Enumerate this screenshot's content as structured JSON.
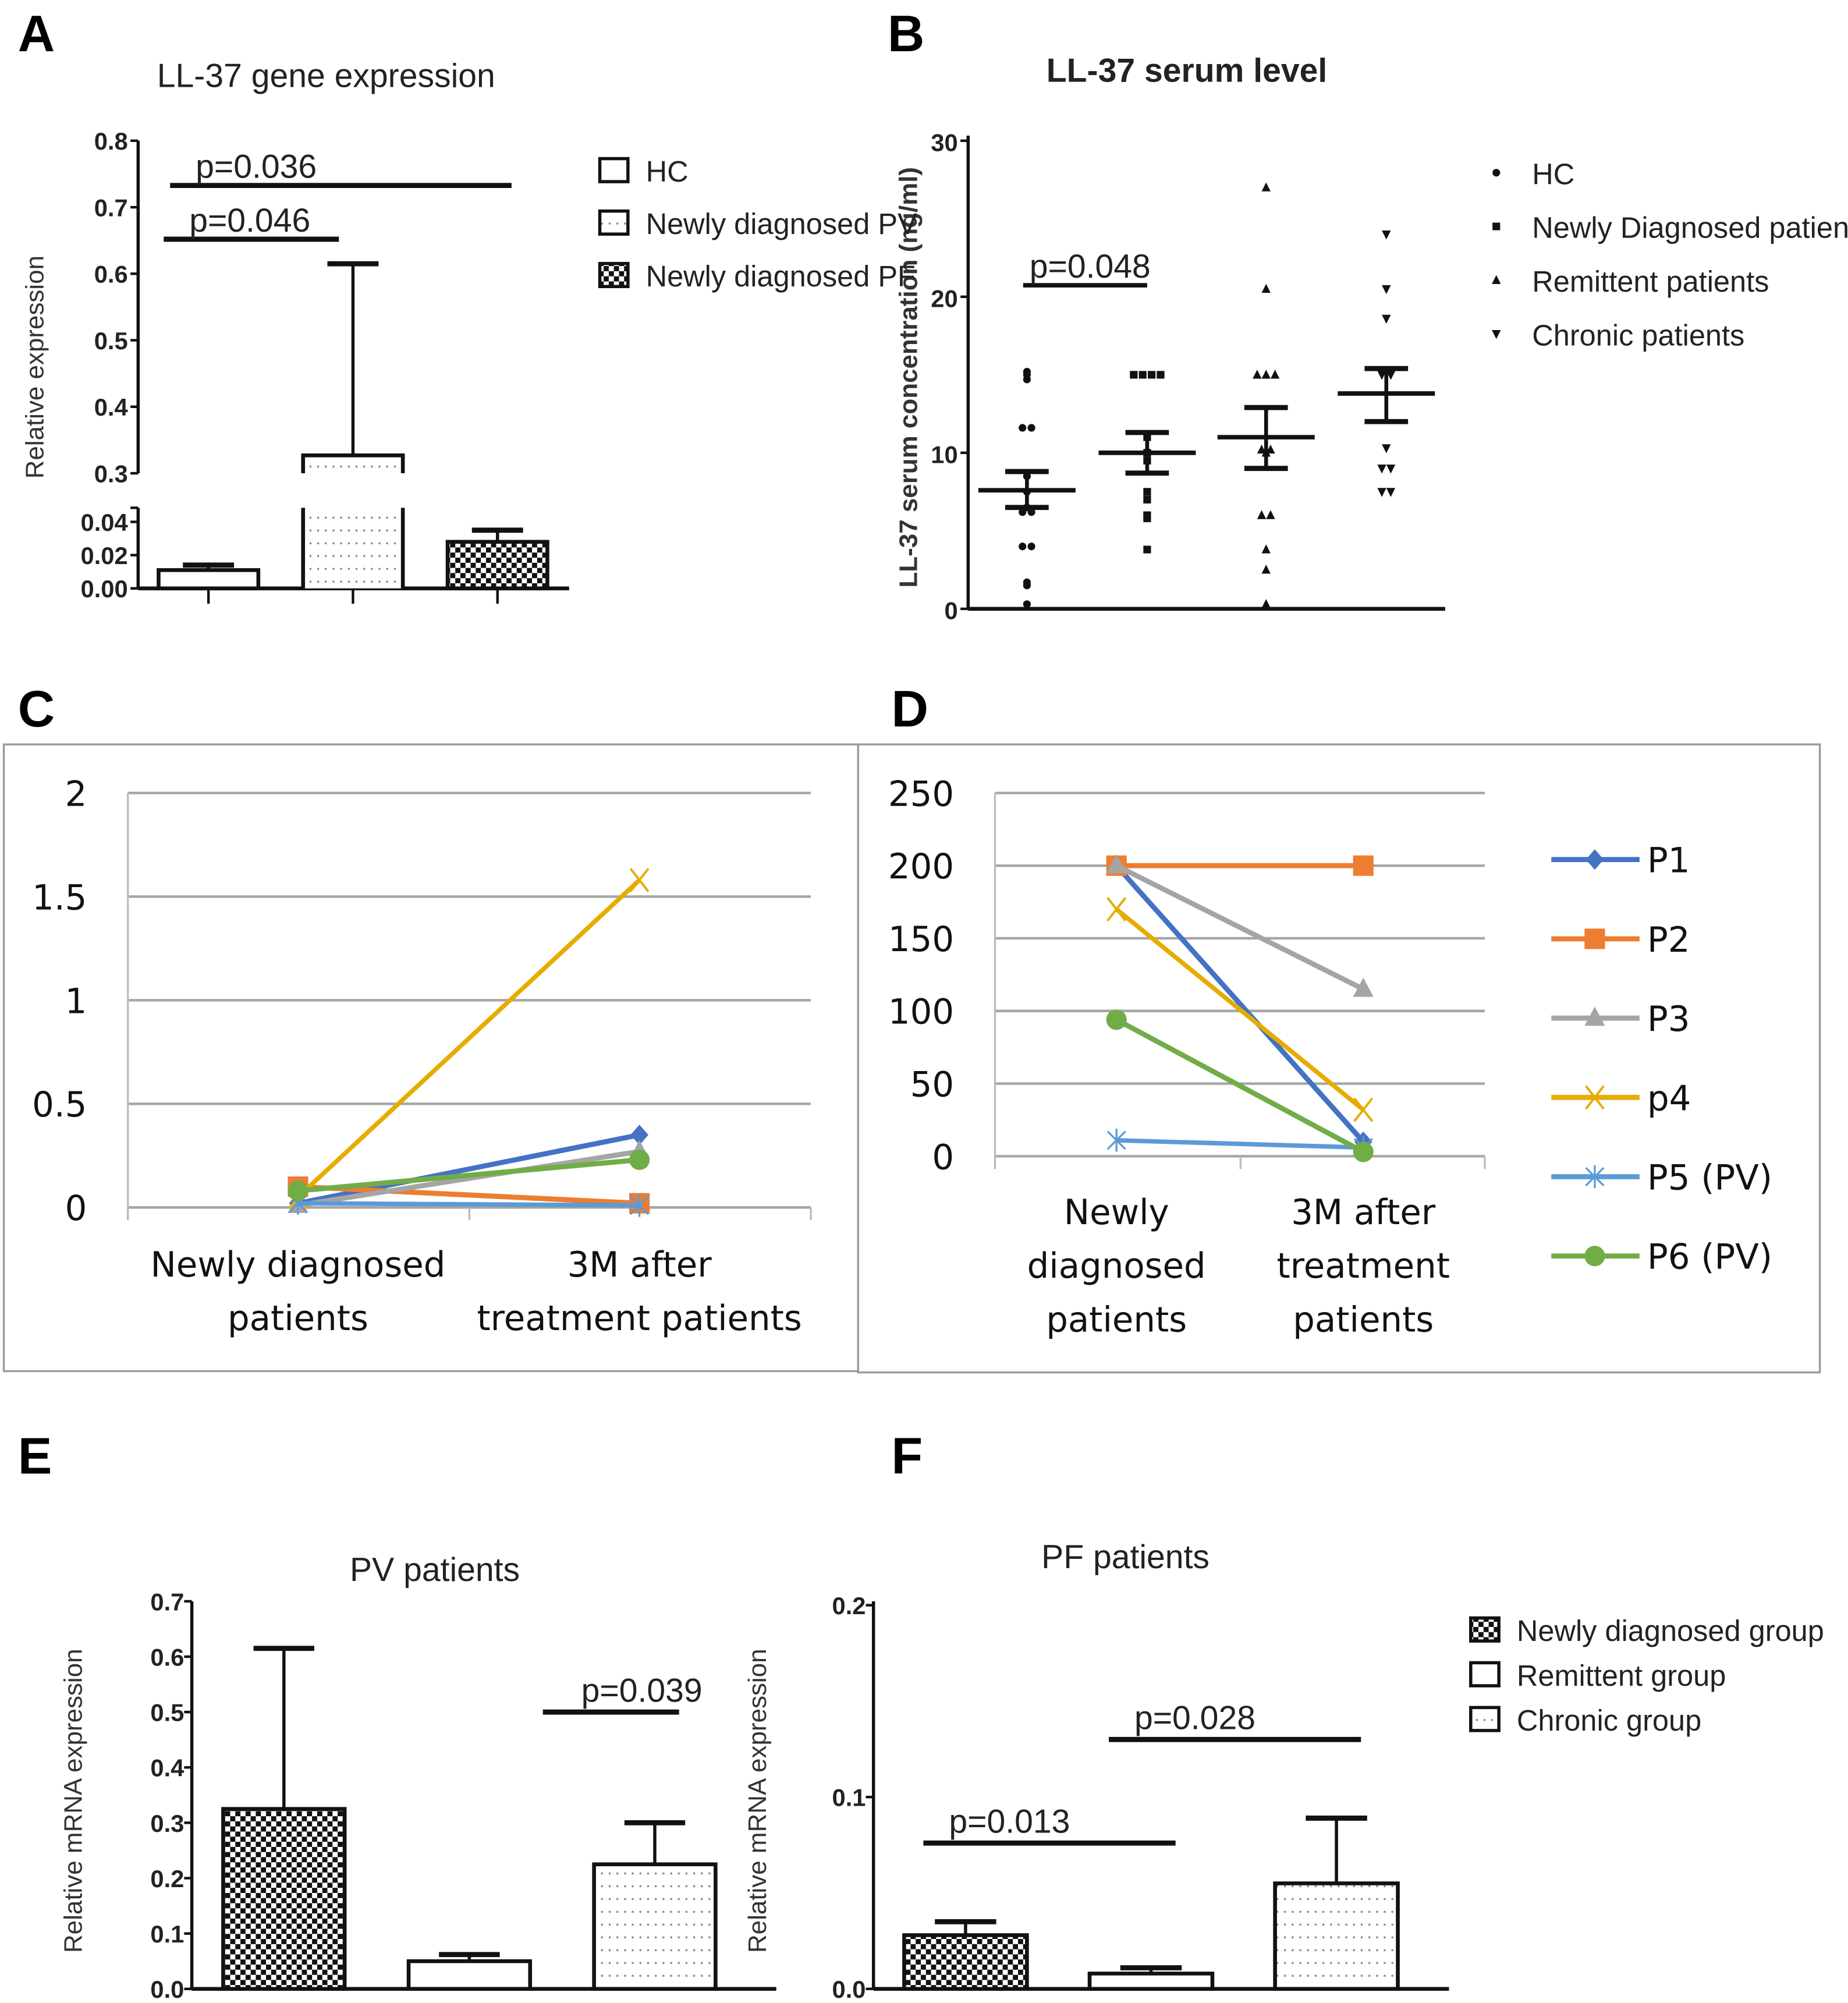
{
  "panel_labels": [
    "A",
    "B",
    "C",
    "D",
    "E",
    "F"
  ],
  "chart_data": [
    {
      "panel": "A",
      "type": "bar",
      "title": "LL-37 gene expression",
      "ylabel": "Relative expression",
      "y_axis_break": true,
      "yticks": [
        "0.00",
        "0.02",
        "0.04",
        "0.3",
        "0.4",
        "0.5",
        "0.6",
        "0.7",
        "0.8"
      ],
      "ytick_values": [
        0,
        0.02,
        0.04,
        0.3,
        0.4,
        0.5,
        0.6,
        0.7,
        0.8
      ],
      "categories": [
        "HC",
        "Newly diagnosed PV",
        "Newly diagnosed PF"
      ],
      "values": [
        0.011,
        0.32,
        0.028
      ],
      "error_upper": [
        0.014,
        0.615,
        0.035
      ],
      "patterns": [
        "empty",
        "dotted",
        "checker"
      ],
      "significance": [
        {
          "label": "p=0.036",
          "from": "HC",
          "to": "Newly diagnosed PF",
          "y": 0.735
        },
        {
          "label": "p=0.046",
          "from": "HC",
          "to": "Newly diagnosed PV",
          "y": 0.65
        }
      ],
      "legend": [
        "HC",
        "Newly diagnosed PV",
        "Newly diagnosed PF"
      ]
    },
    {
      "panel": "B",
      "type": "scatter",
      "title": "LL-37 serum level",
      "ylabel": "LL-37 serum concentration (ng/ml)",
      "ylim": [
        0,
        30
      ],
      "yticks": [
        "0",
        "10",
        "20",
        "30"
      ],
      "groups": [
        {
          "name": "HC",
          "marker": "circle",
          "mean": 7.6,
          "sem_low": 6.5,
          "sem_high": 8.8,
          "points": [
            15,
            14.7,
            15.2,
            11.6,
            11.6,
            8.5,
            7.5,
            6.5,
            6.2,
            6.2,
            4,
            4,
            1.7,
            1.5,
            0.3
          ]
        },
        {
          "name": "Newly Diagnosed patients",
          "marker": "square",
          "mean": 10,
          "sem_low": 8.7,
          "sem_high": 11.3,
          "points": [
            15,
            15,
            15,
            15,
            11,
            10,
            9.5,
            7.5,
            7,
            6,
            5.8,
            3.8
          ]
        },
        {
          "name": "Remittent patients",
          "marker": "triangle-up",
          "mean": 11,
          "sem_low": 9,
          "sem_high": 12.9,
          "points": [
            27,
            20.5,
            15,
            15,
            15,
            10.2,
            10.2,
            10,
            6,
            6,
            3.8,
            2.5,
            0.3
          ]
        },
        {
          "name": "Chronic patients",
          "marker": "triangle-down",
          "mean": 13.8,
          "sem_low": 12,
          "sem_high": 15.4,
          "points": [
            24,
            20.5,
            18.6,
            15,
            15,
            10.3,
            9,
            9,
            7.5,
            7.5
          ]
        }
      ],
      "significance": [
        {
          "label": "p=0.048",
          "from": "HC",
          "to": "Newly Diagnosed patients",
          "y": 20
        }
      ]
    },
    {
      "panel": "C",
      "type": "line",
      "ylim": [
        0,
        2
      ],
      "yticks": [
        "0",
        "0.5",
        "1",
        "1.5",
        "2"
      ],
      "ytick_values": [
        0,
        0.5,
        1,
        1.5,
        2
      ],
      "categories": [
        [
          "Newly diagnosed",
          "patients"
        ],
        [
          "3M after",
          "treatment patients"
        ]
      ],
      "grid": true,
      "series": [
        {
          "name": "P1",
          "color": "#4472C4",
          "marker": "diamond",
          "values": [
            0.02,
            0.35
          ]
        },
        {
          "name": "P2",
          "color": "#ED7D31",
          "marker": "square",
          "values": [
            0.1,
            0.02
          ]
        },
        {
          "name": "P3",
          "color": "#A5A5A5",
          "marker": "triangle",
          "values": [
            0.01,
            0.27
          ]
        },
        {
          "name": "p4",
          "color": "#E6AC00",
          "marker": "x",
          "values": [
            0.05,
            1.58
          ]
        },
        {
          "name": "P5 (PV)",
          "color": "#5B9BD5",
          "marker": "asterisk",
          "values": [
            0.02,
            0.01
          ]
        },
        {
          "name": "P6 (PV)",
          "color": "#70AD47",
          "marker": "circle",
          "values": [
            0.08,
            0.23
          ]
        }
      ]
    },
    {
      "panel": "D",
      "type": "line",
      "ylim": [
        0,
        250
      ],
      "yticks": [
        "0",
        "50",
        "100",
        "150",
        "200",
        "250"
      ],
      "ytick_values": [
        0,
        50,
        100,
        150,
        200,
        250
      ],
      "categories": [
        [
          "Newly",
          "diagnosed",
          "patients"
        ],
        [
          "3M after",
          "treatment",
          "patients"
        ]
      ],
      "grid": true,
      "legend_position": "right",
      "series": [
        {
          "name": "P1",
          "color": "#4472C4",
          "marker": "diamond",
          "values": [
            200,
            10
          ]
        },
        {
          "name": "P2",
          "color": "#ED7D31",
          "marker": "square",
          "values": [
            200,
            200
          ]
        },
        {
          "name": "P3",
          "color": "#A5A5A5",
          "marker": "triangle",
          "values": [
            200,
            115
          ]
        },
        {
          "name": "p4",
          "color": "#E6AC00",
          "marker": "x",
          "values": [
            170,
            32
          ]
        },
        {
          "name": "P5 (PV)",
          "color": "#5B9BD5",
          "marker": "asterisk",
          "values": [
            11,
            6
          ]
        },
        {
          "name": "P6 (PV)",
          "color": "#70AD47",
          "marker": "circle",
          "values": [
            94,
            3
          ]
        }
      ]
    },
    {
      "panel": "E",
      "type": "bar",
      "title": "PV patients",
      "ylabel": "Relative mRNA expression",
      "ylim": [
        0,
        0.7
      ],
      "yticks": [
        "0.0",
        "0.1",
        "0.2",
        "0.3",
        "0.4",
        "0.5",
        "0.6",
        "0.7"
      ],
      "ytick_values": [
        0,
        0.1,
        0.2,
        0.3,
        0.4,
        0.5,
        0.6,
        0.7
      ],
      "categories": [
        "Newly diagnosed group",
        "Remittent group",
        "Chronic group"
      ],
      "values": [
        0.325,
        0.05,
        0.225
      ],
      "error_upper": [
        0.615,
        0.062,
        0.3
      ],
      "patterns": [
        "checker",
        "empty",
        "dotted"
      ],
      "significance": [
        {
          "label": "p=0.039",
          "from": "Remittent group",
          "to": "Chronic group",
          "y": 0.5
        }
      ]
    },
    {
      "panel": "F",
      "type": "bar",
      "title": "PF patients",
      "ylabel": "Relative mRNA expression",
      "ylim": [
        0,
        0.2
      ],
      "yticks": [
        "0.0",
        "0.1",
        "0.2"
      ],
      "ytick_values": [
        0,
        0.1,
        0.2
      ],
      "categories": [
        "Newly diagnosed group",
        "Remittent group",
        "Chronic group"
      ],
      "values": [
        0.028,
        0.008,
        0.055
      ],
      "error_upper": [
        0.035,
        0.011,
        0.089
      ],
      "patterns": [
        "checker",
        "empty",
        "dotted"
      ],
      "significance": [
        {
          "label": "p=0.013",
          "from": "Newly diagnosed group",
          "to": "Remittent group",
          "y": 0.076
        },
        {
          "label": "p=0.028",
          "from": "Remittent group",
          "to": "Chronic group",
          "y": 0.13
        }
      ],
      "legend": [
        "Newly diagnosed group",
        "Remittent group",
        "Chronic group"
      ]
    }
  ]
}
